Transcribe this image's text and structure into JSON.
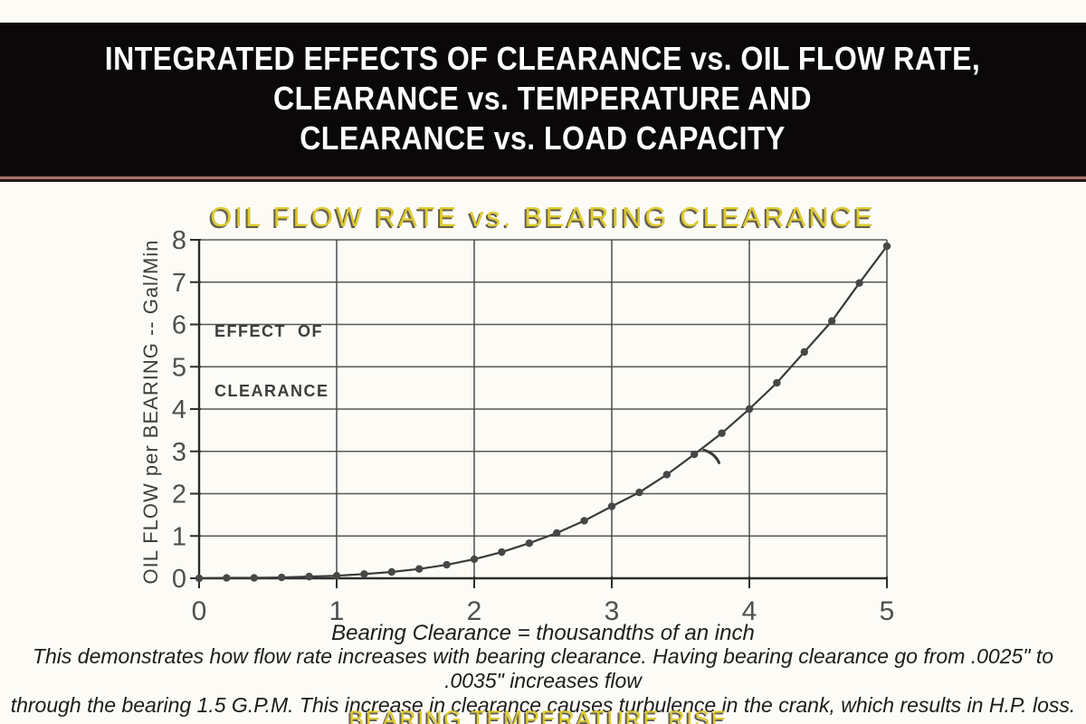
{
  "banner": {
    "line1": "INTEGRATED EFFECTS OF CLEARANCE vs. OIL FLOW RATE,",
    "line2": "CLEARANCE vs. TEMPERATURE AND",
    "line3": "CLEARANCE vs. LOAD CAPACITY",
    "bg_color": "#0b0809",
    "text_color": "#ffffff",
    "stripe_color": "#a5736c"
  },
  "chart": {
    "title": "OIL FLOW RATE vs. BEARING CLEARANCE",
    "title_color": "#ddc92f",
    "effect_label_line1": "EFFECT  OF",
    "effect_label_line2": "CLEARANCE",
    "y_axis_title": "OIL FLOW per BEARING  -- Gal/Min",
    "x_axis_label": "Bearing Clearance = thousandths of an inch"
  },
  "chart_data": {
    "type": "line",
    "title": "OIL FLOW RATE vs. BEARING CLEARANCE",
    "xlabel": "Bearing Clearance = thousandths of an inch",
    "ylabel": "OIL FLOW per BEARING -- Gal/Min",
    "xlim": [
      0,
      5
    ],
    "ylim": [
      0,
      8
    ],
    "x_ticks": [
      0,
      1,
      2,
      3,
      4,
      5
    ],
    "y_ticks": [
      0,
      1,
      2,
      3,
      4,
      5,
      6,
      7,
      8
    ],
    "grid": true,
    "legend": "none",
    "series_name": "Oil flow per bearing (Gal/Min)",
    "x": [
      0,
      0.2,
      0.4,
      0.6,
      0.8,
      1.0,
      1.2,
      1.4,
      1.6,
      1.8,
      2.0,
      2.2,
      2.4,
      2.6,
      2.8,
      3.0,
      3.2,
      3.4,
      3.6,
      3.8,
      4.0,
      4.2,
      4.4,
      4.6,
      4.8,
      5.0
    ],
    "values": [
      0,
      0.01,
      0.01,
      0.02,
      0.04,
      0.06,
      0.1,
      0.15,
      0.22,
      0.32,
      0.45,
      0.62,
      0.83,
      1.07,
      1.36,
      1.7,
      2.03,
      2.45,
      2.93,
      3.43,
      4.0,
      4.62,
      5.35,
      6.08,
      6.98,
      7.85
    ],
    "annotation_arrow": {
      "x1": 3.67,
      "y1": 3.03,
      "xc": 3.75,
      "yc": 2.95,
      "x2": 3.78,
      "y2": 2.73
    },
    "grid_color": "#4a4a4a",
    "axis_color": "#2d2d2d",
    "label_color": "#4f4f4f",
    "line_color": "#3a3a3a",
    "marker_color": "#474747"
  },
  "caption": {
    "line1": "This demonstrates how flow rate increases with bearing clearance. Having bearing clearance go from .0025\" to .0035\" increases flow",
    "line2": "through the bearing 1.5 G.P.M. This increase in clearance causes turbulence in the crank, which results in H.P. loss."
  },
  "next_section": {
    "clipped_title": "BEARING TEMPERATURE RISE"
  }
}
